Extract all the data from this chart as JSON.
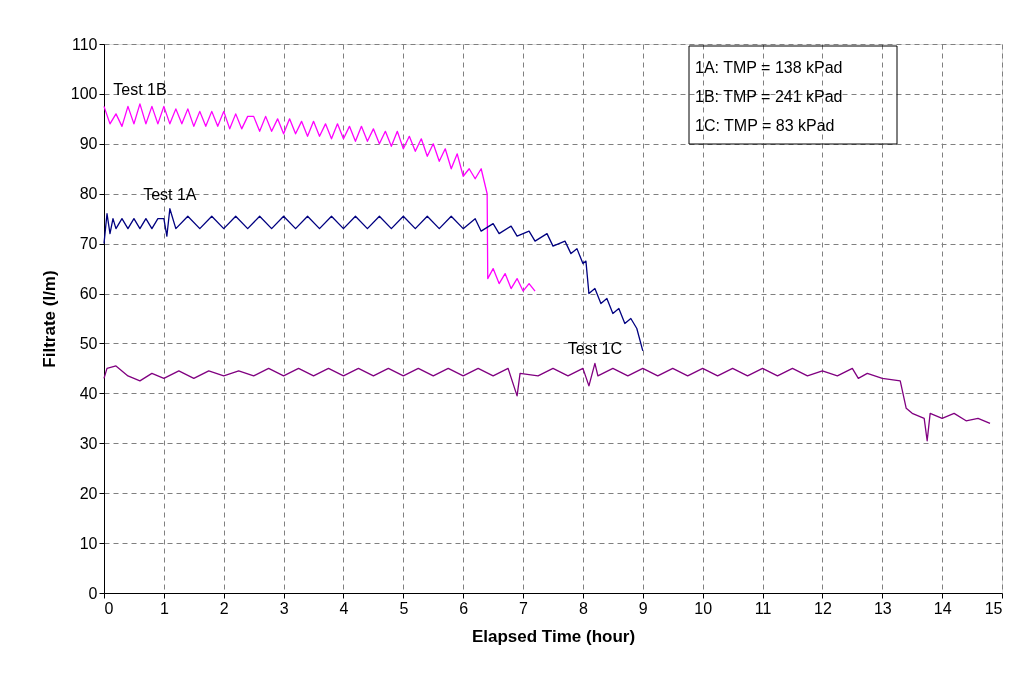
{
  "chart_data": {
    "type": "line",
    "xlabel": "Elapsed Time (hour)",
    "ylabel": "Filtrate (l/m)",
    "xlim": [
      0,
      15
    ],
    "xticks": [
      0,
      1,
      2,
      3,
      4,
      5,
      6,
      7,
      8,
      9,
      10,
      11,
      12,
      13,
      14,
      15
    ],
    "ylim": [
      0,
      110
    ],
    "yticks": [
      0,
      10,
      20,
      30,
      40,
      50,
      60,
      70,
      80,
      90,
      100,
      110
    ],
    "grid": true,
    "line_style": "solid",
    "marker": "none",
    "legend": false,
    "annotations": [
      "1A: TMP = 138 kPad",
      "1B: TMP = 241 kPad",
      "1C: TMP = 83 kPad"
    ],
    "series": [
      {
        "name": "Test 1B",
        "color": "#ff00ff",
        "x": [
          0,
          0.1,
          0.2,
          0.3,
          0.4,
          0.5,
          0.6,
          0.7,
          0.8,
          0.9,
          1.0,
          1.1,
          1.2,
          1.3,
          1.4,
          1.5,
          1.6,
          1.7,
          1.8,
          1.9,
          2.0,
          2.1,
          2.2,
          2.3,
          2.4,
          2.5,
          2.6,
          2.7,
          2.8,
          2.9,
          3.0,
          3.1,
          3.2,
          3.3,
          3.4,
          3.5,
          3.6,
          3.7,
          3.8,
          3.9,
          4.0,
          4.1,
          4.2,
          4.3,
          4.4,
          4.5,
          4.6,
          4.7,
          4.8,
          4.9,
          5.0,
          5.1,
          5.2,
          5.3,
          5.4,
          5.5,
          5.6,
          5.7,
          5.8,
          5.9,
          6.0,
          6.1,
          6.2,
          6.3,
          6.4,
          6.41,
          6.5,
          6.6,
          6.7,
          6.8,
          6.9,
          7.0,
          7.1,
          7.2
        ],
        "values": [
          97.5,
          94,
          96,
          93.5,
          97.5,
          94,
          98,
          94,
          97.5,
          94,
          97.5,
          94,
          97,
          94,
          97,
          93.5,
          96.5,
          93.5,
          96.5,
          93.5,
          96.5,
          93,
          96,
          93,
          95.5,
          95.5,
          92.5,
          95.5,
          92.5,
          95,
          92,
          95,
          92,
          94.5,
          91.5,
          94.5,
          91.5,
          94,
          91,
          94,
          91,
          93.5,
          90.5,
          93.5,
          90.5,
          93,
          90,
          92.5,
          89.5,
          92.5,
          89,
          91.5,
          88.5,
          91,
          87.5,
          90,
          86.5,
          89,
          85,
          88,
          83.5,
          85,
          83,
          85,
          80,
          63,
          65,
          62,
          64,
          61,
          63,
          60.5,
          62,
          60.5
        ]
      },
      {
        "name": "Test 1A",
        "color": "#000080",
        "x": [
          0,
          0.05,
          0.1,
          0.15,
          0.2,
          0.3,
          0.4,
          0.5,
          0.6,
          0.7,
          0.8,
          0.9,
          1.0,
          1.05,
          1.1,
          1.2,
          1.4,
          1.6,
          1.8,
          2.0,
          2.2,
          2.4,
          2.6,
          2.8,
          3.0,
          3.2,
          3.4,
          3.6,
          3.8,
          4.0,
          4.2,
          4.4,
          4.6,
          4.8,
          5.0,
          5.2,
          5.4,
          5.6,
          5.8,
          6.0,
          6.2,
          6.3,
          6.5,
          6.6,
          6.8,
          6.9,
          7.1,
          7.2,
          7.4,
          7.5,
          7.7,
          7.8,
          7.9,
          8.0,
          8.05,
          8.1,
          8.2,
          8.3,
          8.4,
          8.5,
          8.6,
          8.7,
          8.8,
          8.9,
          9.0
        ],
        "values": [
          70,
          76,
          72,
          75,
          73,
          75,
          73,
          75,
          73,
          75,
          73,
          75,
          75,
          71.5,
          77,
          73,
          75.5,
          73,
          75.5,
          73,
          75.5,
          73,
          75.5,
          73,
          75.5,
          73,
          75.5,
          73,
          75.5,
          73,
          75.5,
          73,
          75.5,
          73,
          75.5,
          73,
          75.5,
          73,
          75.5,
          73,
          75,
          72.5,
          74,
          72,
          73.5,
          71.5,
          72.5,
          70.5,
          72,
          69.5,
          70.5,
          68,
          69,
          66,
          66.5,
          60,
          61,
          58,
          59,
          56,
          57,
          54,
          55,
          53,
          48.5
        ]
      },
      {
        "name": "Test 1C",
        "color": "#800080",
        "x": [
          0,
          0.05,
          0.2,
          0.4,
          0.6,
          0.8,
          1.0,
          1.25,
          1.5,
          1.75,
          2.0,
          2.25,
          2.5,
          2.75,
          3.0,
          3.25,
          3.5,
          3.75,
          4.0,
          4.25,
          4.5,
          4.75,
          5.0,
          5.25,
          5.5,
          5.75,
          6.0,
          6.25,
          6.5,
          6.75,
          6.9,
          6.95,
          7.25,
          7.5,
          7.75,
          8.0,
          8.1,
          8.2,
          8.25,
          8.5,
          8.75,
          9.0,
          9.25,
          9.5,
          9.75,
          10.0,
          10.25,
          10.5,
          10.75,
          11.0,
          11.25,
          11.5,
          11.75,
          12.0,
          12.25,
          12.5,
          12.6,
          12.75,
          13.0,
          13.3,
          13.4,
          13.5,
          13.7,
          13.75,
          13.8,
          14.0,
          14.2,
          14.4,
          14.6,
          14.8
        ],
        "values": [
          43,
          45,
          45.5,
          43.5,
          42.5,
          44,
          43,
          44.5,
          43,
          44.5,
          43.5,
          44.5,
          43.5,
          45,
          43.5,
          45,
          43.5,
          45,
          43.5,
          45,
          43.5,
          45,
          43.5,
          45,
          43.5,
          45,
          43.5,
          45,
          43.5,
          45,
          39.5,
          44,
          43.5,
          45,
          43.5,
          45,
          41.5,
          46,
          43.5,
          45,
          43.5,
          45,
          43.5,
          45,
          43.5,
          45,
          43.5,
          45,
          43.5,
          45,
          43.5,
          45,
          43.5,
          44.5,
          43.5,
          45,
          43,
          44,
          43,
          42.5,
          37,
          36,
          35,
          30.5,
          36,
          35,
          36,
          34.5,
          35,
          34
        ]
      }
    ]
  }
}
